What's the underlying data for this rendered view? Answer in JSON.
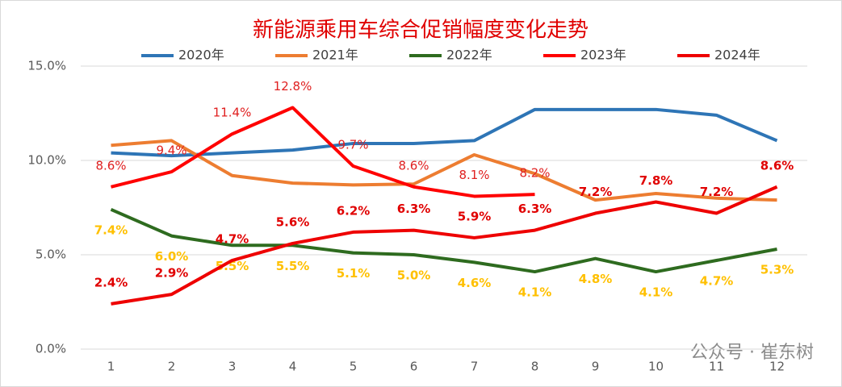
{
  "chart_data": {
    "type": "line",
    "title": "新能源乘用车综合促销幅度变化走势",
    "categories": [
      "1",
      "2",
      "3",
      "4",
      "5",
      "6",
      "7",
      "8",
      "9",
      "10",
      "11",
      "12"
    ],
    "ylim": [
      0,
      15
    ],
    "yticks": [
      {
        "value": 0,
        "label": "0.0%"
      },
      {
        "value": 5,
        "label": "5.0%"
      },
      {
        "value": 10,
        "label": "10.0%"
      },
      {
        "value": 15,
        "label": "15.0%"
      }
    ],
    "grid": true,
    "legend": "top",
    "series": [
      {
        "name": "2020年",
        "color": "#2e75b6",
        "values": [
          10.4,
          10.25,
          10.4,
          10.55,
          10.9,
          10.9,
          11.05,
          12.7,
          12.7,
          12.7,
          12.4,
          11.05
        ]
      },
      {
        "name": "2021年",
        "color": "#ed7d31",
        "values": [
          10.8,
          11.05,
          9.2,
          8.8,
          8.7,
          8.75,
          10.3,
          9.3,
          7.9,
          8.25,
          8.0,
          7.9
        ]
      },
      {
        "name": "2022年",
        "color": "#2e6b1f",
        "label_color": "#ffc000",
        "values": [
          7.4,
          6.0,
          5.5,
          5.5,
          5.1,
          5.0,
          4.6,
          4.1,
          4.8,
          4.1,
          4.7,
          5.3
        ],
        "value_labels": [
          "7.4%",
          "6.0%",
          "5.5%",
          "5.5%",
          "5.1%",
          "5.0%",
          "4.6%",
          "4.1%",
          "4.8%",
          "4.1%",
          "4.7%",
          "5.3%"
        ]
      },
      {
        "name": "2023年",
        "color": "#ff0000",
        "label_color": "#e02020",
        "values": [
          8.6,
          9.4,
          11.4,
          12.8,
          9.7,
          8.6,
          8.1,
          8.2,
          null,
          null,
          null,
          null
        ],
        "value_labels": [
          "8.6%",
          "9.4%",
          "11.4%",
          "12.8%",
          "9.7%",
          "8.6%",
          "8.1%",
          "8.2%",
          null,
          null,
          null,
          null
        ]
      },
      {
        "name": "2024年",
        "color": "#ee0000",
        "label_color": "#e00000",
        "values": [
          2.4,
          2.9,
          4.7,
          5.6,
          6.2,
          6.3,
          5.9,
          6.3,
          7.2,
          7.8,
          7.2,
          8.6
        ],
        "value_labels": [
          "2.4%",
          "2.9%",
          "4.7%",
          "5.6%",
          "6.2%",
          "6.3%",
          "5.9%",
          "6.3%",
          "7.2%",
          "7.8%",
          "7.2%",
          "8.6%"
        ]
      }
    ]
  },
  "watermark": "公众号 · 崔东树"
}
